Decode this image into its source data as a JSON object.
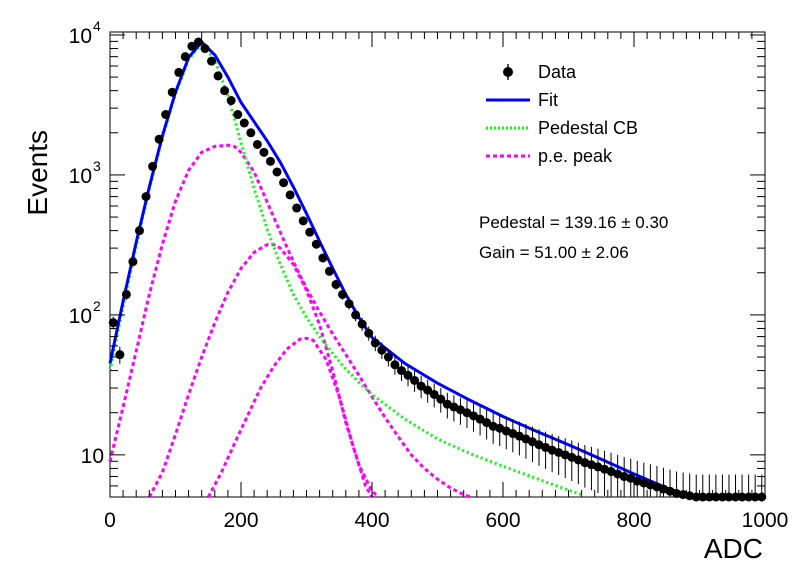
{
  "chart_data": {
    "type": "scatter",
    "xlabel": "ADC",
    "ylabel": "Events",
    "xlim": [
      0,
      1000
    ],
    "ylim": [
      5,
      10500
    ],
    "y_scale": "log",
    "grid": false,
    "legend_position": "top-right",
    "x_ticks": [
      {
        "value": 0,
        "label": "0"
      },
      {
        "value": 200,
        "label": "200"
      },
      {
        "value": 400,
        "label": "400"
      },
      {
        "value": 600,
        "label": "600"
      },
      {
        "value": 800,
        "label": "800"
      },
      {
        "value": 1000,
        "label": "1000"
      }
    ],
    "y_ticks": [
      {
        "value": 10,
        "base": "10",
        "exp": ""
      },
      {
        "value": 100,
        "base": "10",
        "exp": "2"
      },
      {
        "value": 1000,
        "base": "10",
        "exp": "3"
      },
      {
        "value": 10000,
        "base": "10",
        "exp": "4"
      }
    ],
    "legend": [
      {
        "key": "data",
        "label": "Data",
        "color": "#000000",
        "style": "marker"
      },
      {
        "key": "fit",
        "label": "Fit",
        "color": "#0000ff",
        "style": "solid"
      },
      {
        "key": "ped",
        "label": "Pedestal CB",
        "color": "#00ff00",
        "style": "dotted"
      },
      {
        "key": "pe",
        "label": "p.e. peak",
        "color": "#ff00ff",
        "style": "dashed"
      }
    ],
    "annotations": [
      "Pedestal = 139.16 ± 0.30",
      "Gain = 51.00 ± 2.06"
    ],
    "data_series": {
      "name": "Data",
      "x": [
        5,
        15,
        25,
        35,
        45,
        55,
        65,
        75,
        85,
        95,
        105,
        115,
        125,
        135,
        145,
        155,
        165,
        175,
        185,
        195,
        205,
        215,
        225,
        235,
        245,
        255,
        265,
        275,
        285,
        295,
        305,
        315,
        325,
        335,
        345,
        355,
        365,
        375,
        385,
        395,
        405,
        415,
        425,
        435,
        445,
        455,
        465,
        475,
        485,
        495,
        505,
        515,
        525,
        535,
        545,
        555,
        565,
        575,
        585,
        595,
        605,
        615,
        625,
        635,
        645,
        655,
        665,
        675,
        685,
        695,
        705,
        715,
        725,
        735,
        745,
        755,
        765,
        775,
        785,
        795,
        805,
        815,
        825,
        835,
        845,
        855,
        865,
        875,
        885,
        895,
        905,
        915,
        925,
        935,
        945,
        955,
        965,
        975,
        985,
        995
      ],
      "y": [
        88,
        52,
        140,
        240,
        400,
        700,
        1150,
        1800,
        2700,
        3900,
        5400,
        7000,
        8300,
        8900,
        8000,
        6500,
        5100,
        4000,
        3400,
        2700,
        2350,
        2000,
        1650,
        1450,
        1250,
        1050,
        880,
        720,
        580,
        470,
        390,
        320,
        255,
        205,
        165,
        140,
        120,
        100,
        86,
        74,
        63,
        56,
        50,
        44,
        40,
        37,
        34,
        31,
        29,
        27,
        25,
        23,
        22,
        21,
        20,
        19,
        18,
        17,
        16,
        15.5,
        14.8,
        14.2,
        13.6,
        13,
        12.4,
        11.8,
        11.3,
        10.8,
        10.4,
        10,
        9.6,
        9.2,
        8.8,
        8.5,
        8.2,
        7.9,
        7.6,
        7.3,
        7,
        6.8,
        6.5,
        6.3,
        6.1,
        5.9,
        5.7,
        5.5,
        5.3,
        5.2,
        5.1,
        5,
        5,
        5,
        5,
        5,
        5,
        5,
        5,
        5,
        5,
        5
      ]
    },
    "fit_series": {
      "name": "Fit",
      "x": [
        0,
        20,
        40,
        60,
        80,
        100,
        120,
        140,
        160,
        180,
        200,
        220,
        240,
        260,
        280,
        300,
        320,
        340,
        360,
        380,
        400,
        450,
        500,
        550,
        600,
        650,
        700,
        750,
        800,
        850,
        890
      ],
      "y": [
        45,
        125,
        330,
        820,
        1900,
        3900,
        6900,
        8900,
        7200,
        5000,
        3300,
        2400,
        1750,
        1230,
        820,
        530,
        335,
        215,
        140,
        96,
        69,
        45,
        32.5,
        24.5,
        18.8,
        14.8,
        11.8,
        9.3,
        7.3,
        5.8,
        5
      ]
    },
    "pedestal_series": {
      "name": "Pedestal CB",
      "x": [
        0,
        20,
        40,
        60,
        80,
        100,
        120,
        140,
        160,
        180,
        200,
        220,
        240,
        260,
        280,
        300,
        320,
        340,
        360,
        380,
        400,
        450,
        500,
        550,
        600,
        650,
        700,
        720
      ],
      "y": [
        40,
        115,
        310,
        790,
        1850,
        3800,
        6700,
        8700,
        6600,
        3700,
        1700,
        800,
        410,
        230,
        140,
        96,
        70,
        53,
        41,
        33,
        27,
        18,
        13,
        10.2,
        8.3,
        6.8,
        5.6,
        5.2
      ]
    },
    "pe_peaks": [
      {
        "name": "p.e. peak",
        "x": [
          0,
          20,
          40,
          60,
          80,
          100,
          120,
          140,
          160,
          180,
          190,
          200,
          220,
          240,
          260,
          280,
          300,
          320,
          340,
          360,
          380,
          400,
          420,
          440,
          460,
          480,
          500,
          520,
          540,
          550
        ],
        "y": [
          9,
          22,
          55,
          140,
          320,
          650,
          1080,
          1450,
          1600,
          1630,
          1600,
          1450,
          1050,
          640,
          390,
          240,
          155,
          105,
          73,
          52,
          37,
          26,
          18.5,
          13.5,
          10,
          8,
          6.7,
          5.8,
          5.2,
          5
        ]
      },
      {
        "name": "p.e. peak",
        "x": [
          60,
          80,
          100,
          120,
          140,
          160,
          180,
          200,
          220,
          240,
          250,
          260,
          280,
          300,
          320,
          340,
          360,
          380,
          400,
          410
        ],
        "y": [
          5,
          7.5,
          14,
          27,
          50,
          88,
          145,
          215,
          280,
          318,
          318,
          300,
          230,
          150,
          85,
          40,
          17,
          8.5,
          5.5,
          5
        ]
      },
      {
        "name": "p.e. peak",
        "x": [
          150,
          170,
          190,
          210,
          230,
          250,
          270,
          290,
          300,
          310,
          330,
          350,
          370,
          390,
          400
        ],
        "y": [
          5,
          7.5,
          12,
          19,
          30,
          43,
          57,
          67,
          68,
          66,
          48,
          26,
          12,
          6,
          5
        ]
      }
    ]
  }
}
